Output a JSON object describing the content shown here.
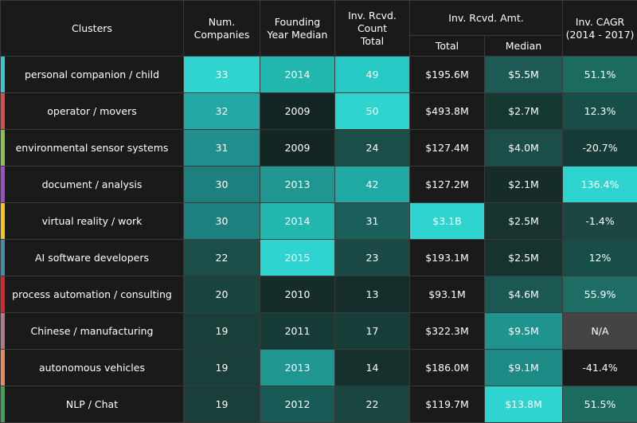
{
  "header": {
    "clusters": "Clusters",
    "num_companies": [
      "Num.",
      "Companies"
    ],
    "founding_year": [
      "Founding",
      "Year Median"
    ],
    "count_total": [
      "Inv. Rcvd.",
      "Count",
      "Total"
    ],
    "amt": "Inv. Rcvd. Amt.",
    "amt_total": "Total",
    "amt_median": "Median",
    "cagr": [
      "Inv. CAGR",
      "(2014 - 2017)"
    ]
  },
  "chart_data": {
    "type": "table",
    "columns": [
      "Clusters",
      "Num. Companies",
      "Founding Year Median",
      "Inv. Rcvd. Count Total",
      "Inv. Rcvd. Amt. Total",
      "Inv. Rcvd. Amt. Median",
      "Inv. CAGR (2014 - 2017)"
    ],
    "rows": [
      {
        "cluster": "personal companion / child",
        "num": "33",
        "year": "2014",
        "count": "49",
        "total": "$195.6M",
        "median": "$5.5M",
        "cagr": "51.1%",
        "stripe": "#2fc9d6",
        "bg": [
          "#2fd4d0",
          "#22b8b0",
          "#26c9c4",
          "#1a1a1a",
          "#1e5a55",
          "#1c6b60"
        ]
      },
      {
        "cluster": "operator / movers",
        "num": "32",
        "year": "2009",
        "count": "50",
        "total": "$493.8M",
        "median": "$2.7M",
        "cagr": "12.3%",
        "stripe": "#e5484d",
        "bg": [
          "#23a8a6",
          "#142623",
          "#2fd4d0",
          "#1a1a1a",
          "#163833",
          "#174f48"
        ]
      },
      {
        "cluster": "environmental sensor systems",
        "num": "31",
        "year": "2009",
        "count": "24",
        "total": "$127.4M",
        "median": "$4.0M",
        "cagr": "-20.7%",
        "stripe": "#8bc34a",
        "bg": [
          "#1f8e8c",
          "#142623",
          "#1b4d49",
          "#1a1a1a",
          "#1b4d49",
          "#173b37"
        ]
      },
      {
        "cluster": "document / analysis",
        "num": "30",
        "year": "2013",
        "count": "42",
        "total": "$127.2M",
        "median": "$2.1M",
        "cagr": "136.4%",
        "stripe": "#9c4dcc",
        "bg": [
          "#1d7f7e",
          "#1f9690",
          "#1fa8a4",
          "#1a1a1a",
          "#152c29",
          "#2fd4d0"
        ]
      },
      {
        "cluster": "virtual reality / work",
        "num": "30",
        "year": "2014",
        "count": "31",
        "total": "$3.1B",
        "median": "$2.5M",
        "cagr": "-1.4%",
        "stripe": "#f5c518",
        "bg": [
          "#1d7f7e",
          "#22b8b0",
          "#1b5f5b",
          "#2fd4d0",
          "#163330",
          "#1c4641"
        ]
      },
      {
        "cluster": "AI software developers",
        "num": "22",
        "year": "2015",
        "count": "23",
        "total": "$193.1M",
        "median": "$2.5M",
        "cagr": "12%",
        "stripe": "#3f8ea8",
        "bg": [
          "#1b4d49",
          "#2fd4d0",
          "#1b4a46",
          "#1a1a1a",
          "#163330",
          "#174f48"
        ]
      },
      {
        "cluster": "process automation / consulting",
        "num": "20",
        "year": "2010",
        "count": "13",
        "total": "$93.1M",
        "median": "$4.6M",
        "cagr": "55.9%",
        "stripe": "#e0242b",
        "bg": [
          "#1a4440",
          "#152c29",
          "#152e2b",
          "#1a1a1a",
          "#1c5853",
          "#1e6e66"
        ]
      },
      {
        "cluster": "Chinese / manufacturing",
        "num": "19",
        "year": "2011",
        "count": "17",
        "total": "$322.3M",
        "median": "$9.5M",
        "cagr": "N/A",
        "stripe": "#b07a86",
        "bg": [
          "#1a3f3b",
          "#173b37",
          "#183e3a",
          "#1a1a1a",
          "#1f948f",
          "#444444"
        ]
      },
      {
        "cluster": "autonomous vehicles",
        "num": "19",
        "year": "2013",
        "count": "14",
        "total": "$186.0M",
        "median": "$9.1M",
        "cagr": "-41.4%",
        "stripe": "#f08a5d",
        "bg": [
          "#1a3f3b",
          "#1f9690",
          "#15302d",
          "#1a1a1a",
          "#1e8a85",
          "#1a1a1a"
        ]
      },
      {
        "cluster": "NLP / Chat",
        "num": "19",
        "year": "2012",
        "count": "22",
        "total": "$119.7M",
        "median": "$13.8M",
        "cagr": "51.5%",
        "stripe": "#3aa655",
        "bg": [
          "#1a3f3b",
          "#1a5a56",
          "#1a4642",
          "#1a1a1a",
          "#2fd4d0",
          "#1c6b60"
        ]
      }
    ]
  }
}
